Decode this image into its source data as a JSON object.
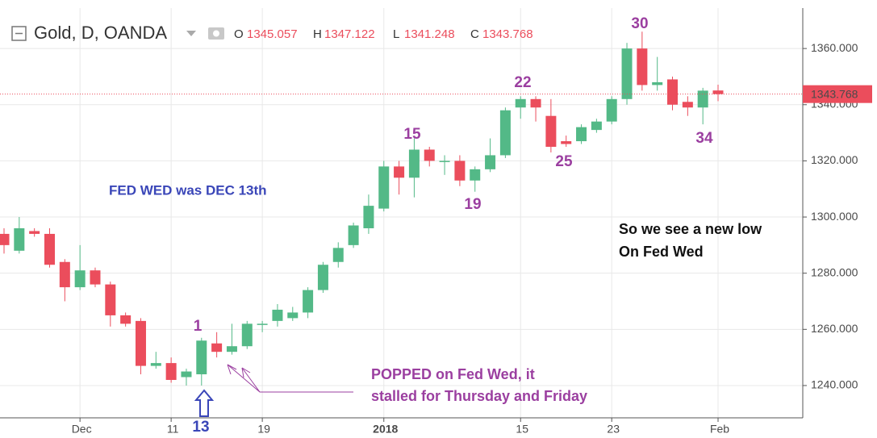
{
  "chart_data": {
    "type": "candlestick",
    "title": "Gold, D, OANDA",
    "ohlc_labels": [
      "O",
      "H",
      "L",
      "C"
    ],
    "categories": [
      null,
      null,
      null,
      null,
      null,
      "Dec",
      null,
      null,
      null,
      null,
      null,
      "11",
      null,
      null,
      null,
      null,
      null,
      "19",
      null,
      null,
      null,
      null,
      null,
      null,
      null,
      "2018",
      null,
      null,
      null,
      null,
      null,
      null,
      null,
      null,
      "15",
      null,
      null,
      null,
      null,
      null,
      "23",
      null,
      null,
      null,
      null,
      null,
      null,
      "Feb"
    ],
    "open": [
      1294,
      1288,
      1295,
      1294,
      1284,
      1275,
      1281,
      1276,
      1265,
      1263,
      1247,
      1248,
      1243,
      1244,
      1255,
      1252,
      1254,
      1262,
      1263,
      1264,
      1266,
      1274,
      1284,
      1290,
      1296,
      1303,
      1318,
      1314,
      1324,
      1320,
      1320,
      1313,
      1317,
      1322,
      1339,
      1342,
      1336,
      1327,
      1327,
      1331,
      1334,
      1342,
      1360,
      1347,
      1349,
      1341,
      1339,
      1345.057
    ],
    "high": [
      1296,
      1300,
      1296,
      1296,
      1285,
      1290,
      1282,
      1277,
      1266,
      1264,
      1252,
      1250,
      1246,
      1257,
      1259,
      1262,
      1263,
      1263,
      1269,
      1268,
      1275,
      1284,
      1291,
      1298,
      1308,
      1320,
      1320,
      1328,
      1325,
      1322,
      1322,
      1318,
      1328,
      1339,
      1343,
      1343,
      1342,
      1329,
      1333,
      1335,
      1343,
      1362,
      1366,
      1357,
      1350,
      1343,
      1346,
      1347.122
    ],
    "low": [
      1287,
      1287,
      1293,
      1282,
      1270,
      1274,
      1275,
      1261,
      1261,
      1244,
      1246,
      1241,
      1240,
      1240,
      1250,
      1251,
      1253,
      1259,
      1261,
      1263,
      1264,
      1273,
      1282,
      1289,
      1294,
      1302,
      1308,
      1307,
      1318,
      1315,
      1311,
      1309,
      1316,
      1321,
      1335,
      1334,
      1323,
      1325,
      1326,
      1330,
      1333,
      1340,
      1345,
      1345,
      1338,
      1336,
      1333,
      1341.248
    ],
    "close": [
      1290,
      1296,
      1294,
      1283,
      1275,
      1281,
      1276,
      1265,
      1262,
      1247,
      1248,
      1242,
      1245,
      1256,
      1252,
      1254,
      1262,
      1262,
      1267,
      1266,
      1274,
      1283,
      1289,
      1297,
      1304,
      1318,
      1314,
      1324,
      1320,
      1320,
      1313,
      1317,
      1322,
      1338,
      1342,
      1339,
      1325,
      1326,
      1332,
      1334,
      1342,
      1360,
      1347,
      1348,
      1340,
      1339,
      1345,
      1343.768
    ],
    "up_color": "#53b987",
    "down_color": "#eb4d5c",
    "ylim": [
      1228.5,
      1374.4
    ],
    "yticks": [
      {
        "value": 1240,
        "label": "1240.000"
      },
      {
        "value": 1260,
        "label": "1260.000"
      },
      {
        "value": 1280,
        "label": "1280.000"
      },
      {
        "value": 1300,
        "label": "1300.000"
      },
      {
        "value": 1320,
        "label": "1320.000"
      },
      {
        "value": 1340,
        "label": "1340.000"
      },
      {
        "value": 1360,
        "label": "1360.000"
      }
    ],
    "grid": true,
    "annotations": [
      "1",
      "13",
      "15",
      "19",
      "22",
      "25",
      "30",
      "34",
      "FED WED was DEC 13th",
      "So we see a new low",
      "On Fed Wed",
      "POPPED on Fed Wed,  it",
      "stalled for Thursday and Friday"
    ]
  }
}
